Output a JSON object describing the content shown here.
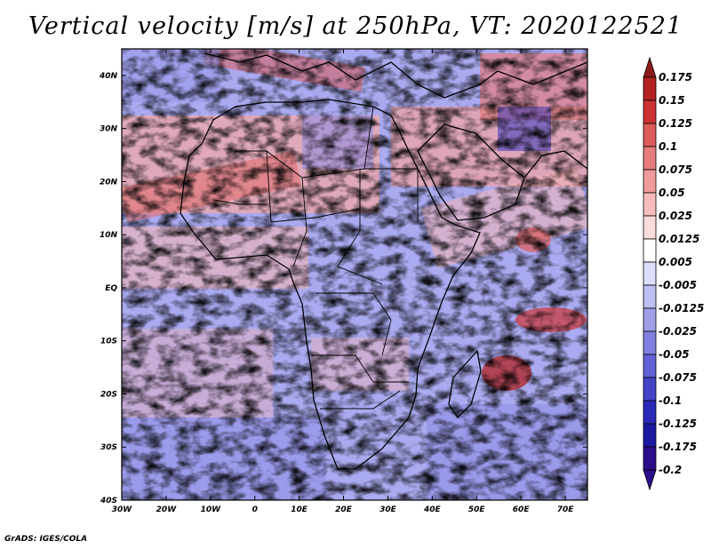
{
  "title": "Vertical velocity [m/s] at 250hPa, VT: 2020122521",
  "credit": "GrADS: IGES/COLA",
  "map": {
    "lon_range": [
      -30,
      75
    ],
    "lat_range": [
      -40,
      45
    ],
    "lon_ticks": [
      "30W",
      "20W",
      "10W",
      "0",
      "10E",
      "20E",
      "30E",
      "40E",
      "50E",
      "60E",
      "70E"
    ],
    "lat_ticks": [
      "40N",
      "30N",
      "20N",
      "10N",
      "EQ",
      "10S",
      "20S",
      "30S",
      "40S"
    ]
  },
  "colorbar": {
    "levels": [
      "0.175",
      "0.15",
      "0.125",
      "0.1",
      "0.075",
      "0.05",
      "0.025",
      "0.0125",
      "0.005",
      "-0.005",
      "-0.0125",
      "-0.025",
      "-0.05",
      "-0.075",
      "-0.1",
      "-0.125",
      "-0.175",
      "-0.2"
    ],
    "colors": [
      "#8b1a1a",
      "#b22222",
      "#cd3333",
      "#dc5b5b",
      "#e67c7c",
      "#f09a9a",
      "#f6bcbc",
      "#fbdcdc",
      "#ffffff",
      "#dcdcfb",
      "#bebef2",
      "#a0a0e9",
      "#8080e0",
      "#6262d6",
      "#4444c8",
      "#2a2ab8",
      "#1a1aa0",
      "#2b0d8a"
    ]
  }
}
